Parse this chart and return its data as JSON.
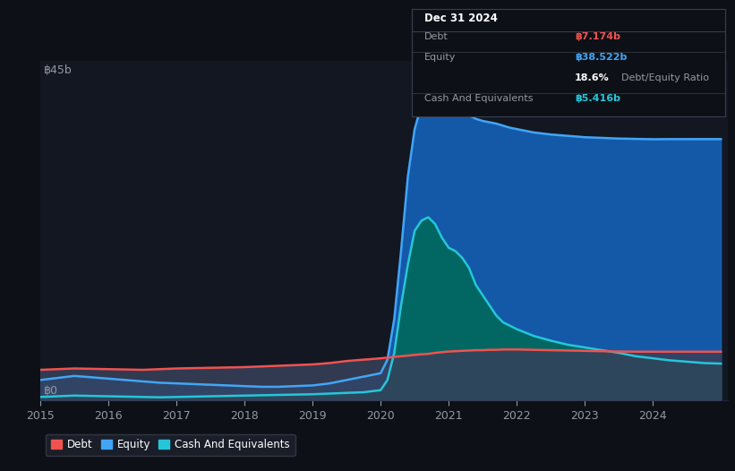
{
  "bg_color": "#0d1117",
  "plot_bg_color": "#131722",
  "grid_color": "#1e2433",
  "years": [
    2015.0,
    2015.25,
    2015.5,
    2015.75,
    2016.0,
    2016.25,
    2016.5,
    2016.75,
    2017.0,
    2017.25,
    2017.5,
    2017.75,
    2018.0,
    2018.25,
    2018.5,
    2018.75,
    2019.0,
    2019.25,
    2019.5,
    2019.75,
    2020.0,
    2020.1,
    2020.2,
    2020.3,
    2020.4,
    2020.5,
    2020.6,
    2020.7,
    2020.8,
    2020.9,
    2021.0,
    2021.1,
    2021.2,
    2021.3,
    2021.4,
    2021.5,
    2021.6,
    2021.7,
    2021.8,
    2021.9,
    2022.0,
    2022.25,
    2022.5,
    2022.75,
    2023.0,
    2023.25,
    2023.5,
    2023.75,
    2024.0,
    2024.25,
    2024.5,
    2024.75,
    2025.0
  ],
  "equity": [
    3.0,
    3.3,
    3.6,
    3.4,
    3.2,
    3.0,
    2.8,
    2.6,
    2.5,
    2.4,
    2.3,
    2.2,
    2.1,
    2.0,
    2.0,
    2.1,
    2.2,
    2.5,
    3.0,
    3.5,
    4.0,
    6.0,
    12.0,
    22.0,
    33.0,
    40.0,
    43.5,
    44.8,
    45.0,
    44.5,
    43.8,
    43.0,
    42.5,
    42.0,
    41.5,
    41.2,
    41.0,
    40.8,
    40.5,
    40.2,
    40.0,
    39.5,
    39.2,
    39.0,
    38.8,
    38.7,
    38.6,
    38.55,
    38.5,
    38.52,
    38.52,
    38.522,
    38.522
  ],
  "cash": [
    0.5,
    0.6,
    0.7,
    0.65,
    0.6,
    0.55,
    0.5,
    0.45,
    0.5,
    0.55,
    0.6,
    0.65,
    0.7,
    0.75,
    0.8,
    0.85,
    0.9,
    1.0,
    1.1,
    1.2,
    1.5,
    3.0,
    7.0,
    14.0,
    20.0,
    25.0,
    26.5,
    27.0,
    26.0,
    24.0,
    22.5,
    22.0,
    21.0,
    19.5,
    17.0,
    15.5,
    14.0,
    12.5,
    11.5,
    11.0,
    10.5,
    9.5,
    8.8,
    8.2,
    7.8,
    7.4,
    7.0,
    6.5,
    6.2,
    5.9,
    5.7,
    5.5,
    5.416
  ],
  "debt": [
    4.5,
    4.6,
    4.7,
    4.65,
    4.6,
    4.55,
    4.5,
    4.6,
    4.7,
    4.75,
    4.8,
    4.85,
    4.9,
    5.0,
    5.1,
    5.2,
    5.3,
    5.5,
    5.8,
    6.0,
    6.2,
    6.3,
    6.4,
    6.5,
    6.6,
    6.7,
    6.8,
    6.85,
    7.0,
    7.1,
    7.2,
    7.25,
    7.3,
    7.35,
    7.4,
    7.4,
    7.45,
    7.45,
    7.5,
    7.5,
    7.5,
    7.45,
    7.4,
    7.35,
    7.3,
    7.25,
    7.2,
    7.18,
    7.174,
    7.174,
    7.174,
    7.174,
    7.174
  ],
  "equity_fill_color": "#1565c0",
  "equity_line_color": "#42a5f5",
  "cash_fill_color": "#00695c",
  "cash_line_color": "#26c6da",
  "debt_fill_color": "#37415a",
  "debt_line_color": "#ef5350",
  "ylabel_top": "฿45b",
  "ylabel_bot": "฿0",
  "xtick_labels": [
    "2015",
    "2016",
    "2017",
    "2018",
    "2019",
    "2020",
    "2021",
    "2022",
    "2023",
    "2024"
  ],
  "xtick_values": [
    2015,
    2016,
    2017,
    2018,
    2019,
    2020,
    2021,
    2022,
    2023,
    2024
  ],
  "ylim": [
    0,
    50
  ],
  "title_box": {
    "date": "Dec 31 2024",
    "debt_label": "Debt",
    "debt_value": "฿7.174b",
    "debt_color": "#ef5350",
    "equity_label": "Equity",
    "equity_value": "฿38.522b",
    "equity_color": "#42a5f5",
    "ratio_pct": "18.6%",
    "ratio_text": "Debt/Equity Ratio",
    "cash_label": "Cash And Equivalents",
    "cash_value": "฿5.416b",
    "cash_color": "#26c6da"
  },
  "legend_items": [
    {
      "label": "Debt",
      "color": "#ef5350"
    },
    {
      "label": "Equity",
      "color": "#42a5f5"
    },
    {
      "label": "Cash And Equivalents",
      "color": "#26c6da"
    }
  ],
  "legend_bg": "#1e222d",
  "legend_border": "#3a3f4e",
  "text_color": "#9598a1",
  "tick_color": "#9598a1"
}
